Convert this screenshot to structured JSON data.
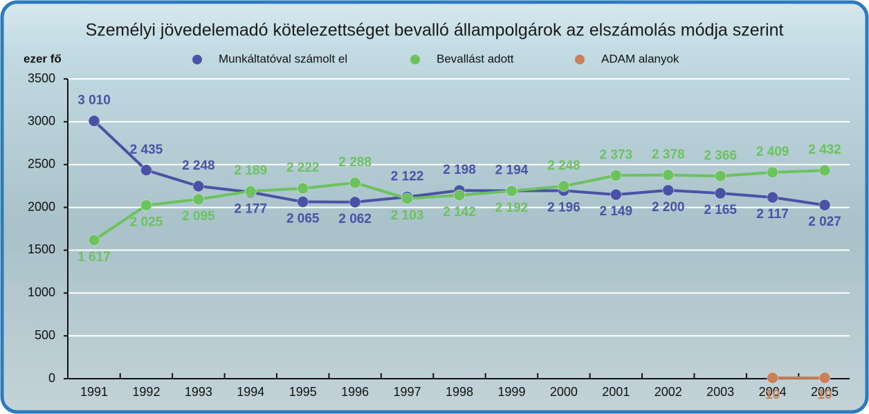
{
  "chart_data": {
    "type": "line",
    "title": "Személyi jövedelemadó kötelezettséget bevalló állampolgárok az elszámolás módja szerint",
    "ylabel": "ezer fő",
    "categories": [
      "1991",
      "1992",
      "1993",
      "1994",
      "1995",
      "1996",
      "1997",
      "1998",
      "1999",
      "2000",
      "2001",
      "2002",
      "2003",
      "2004",
      "2005"
    ],
    "ylim": [
      0,
      3500
    ],
    "yticks": [
      0,
      500,
      1000,
      1500,
      2000,
      2500,
      3000,
      3500
    ],
    "grid": true,
    "legend": "top",
    "series": [
      {
        "name": "Munkáltatóval számolt el",
        "color": "#4a52a6",
        "values": [
          3010,
          2435,
          2248,
          2177,
          2065,
          2062,
          2122,
          2198,
          2194,
          2196,
          2149,
          2200,
          2165,
          2117,
          2027
        ],
        "value_labels": [
          "3 010",
          "2 435",
          "2 248",
          "2 177",
          "2 065",
          "2 062",
          "2 122",
          "2 198",
          "2 194",
          "2 196",
          "2 149",
          "2 200",
          "2 165",
          "2 117",
          "2 027"
        ]
      },
      {
        "name": "Bevallást adott",
        "color": "#6cc25e",
        "values": [
          1617,
          2025,
          2095,
          2189,
          2222,
          2288,
          2103,
          2142,
          2192,
          2248,
          2373,
          2378,
          2366,
          2409,
          2432
        ],
        "value_labels": [
          "1 617",
          "2 025",
          "2 095",
          "2 189",
          "2 222",
          "2 288",
          "2 103",
          "2 142",
          "2 192",
          "2 248",
          "2 373",
          "2 378",
          "2 366",
          "2 409",
          "2 432"
        ]
      },
      {
        "name": "ADAM alanyok",
        "color": "#c9805a",
        "values": [
          null,
          null,
          null,
          null,
          null,
          null,
          null,
          null,
          null,
          null,
          null,
          null,
          null,
          10,
          10
        ]
      }
    ]
  }
}
